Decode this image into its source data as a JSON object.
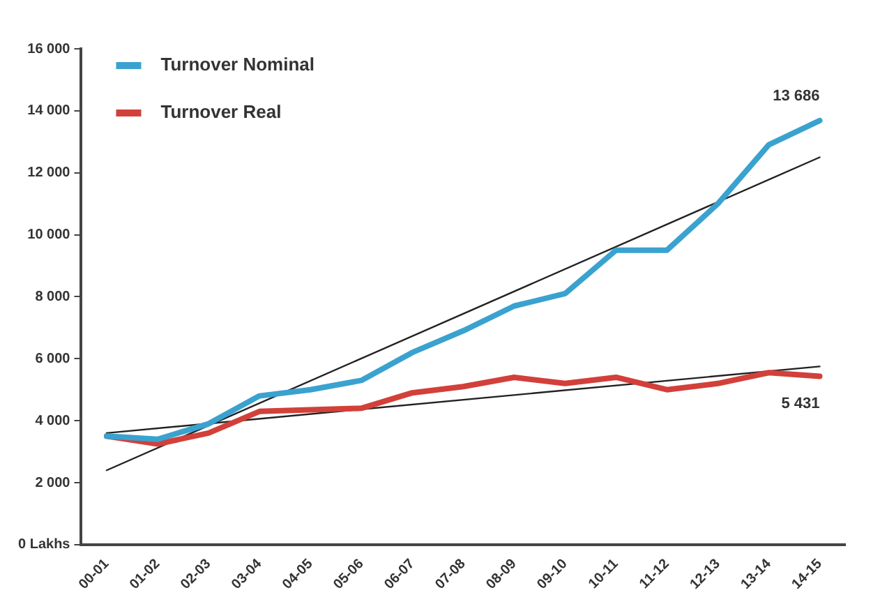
{
  "chart_data": {
    "type": "line",
    "categories": [
      "00-01",
      "01-02",
      "02-03",
      "03-04",
      "04-05",
      "05-06",
      "06-07",
      "07-08",
      "08-09",
      "09-10",
      "10-11",
      "11-12",
      "12-13",
      "13-14",
      "14-15"
    ],
    "series": [
      {
        "name": "Turnover Nominal",
        "color": "#3aa2cf",
        "values": [
          3500,
          3400,
          3900,
          4800,
          5000,
          5300,
          6200,
          6900,
          7700,
          8100,
          9500,
          9500,
          11000,
          12900,
          13686
        ]
      },
      {
        "name": "Turnover Real",
        "color": "#d2403a",
        "values": [
          3500,
          3250,
          3600,
          4300,
          4350,
          4400,
          4900,
          5100,
          5400,
          5200,
          5400,
          5000,
          5200,
          5550,
          5431
        ]
      },
      {
        "type": "line",
        "color": "#222222",
        "x": [
          "00-01",
          "14-15"
        ],
        "values": [
          2400,
          12500
        ]
      },
      {
        "type": "line",
        "color": "#222222",
        "x": [
          "00-01",
          "14-15"
        ],
        "values": [
          3600,
          5750
        ]
      }
    ],
    "ylim": [
      0,
      16000
    ],
    "yticks": [
      {
        "value": 0,
        "label": "0 Lakhs"
      },
      {
        "value": 2000,
        "label": "2 000"
      },
      {
        "value": 4000,
        "label": "4 000"
      },
      {
        "value": 6000,
        "label": "6 000"
      },
      {
        "value": 8000,
        "label": "8 000"
      },
      {
        "value": 10000,
        "label": "10 000"
      },
      {
        "value": 12000,
        "label": "12 000"
      },
      {
        "value": 14000,
        "label": "14 000"
      },
      {
        "value": 16000,
        "label": "16 000"
      }
    ],
    "annotations": [
      {
        "text": "13 686",
        "x": "14-15",
        "y": 13686
      },
      {
        "text": "5 431",
        "x": "14-15",
        "y": 5431
      }
    ],
    "grid": false,
    "legend": "top left",
    "marker": "none",
    "line_style": "solid"
  }
}
